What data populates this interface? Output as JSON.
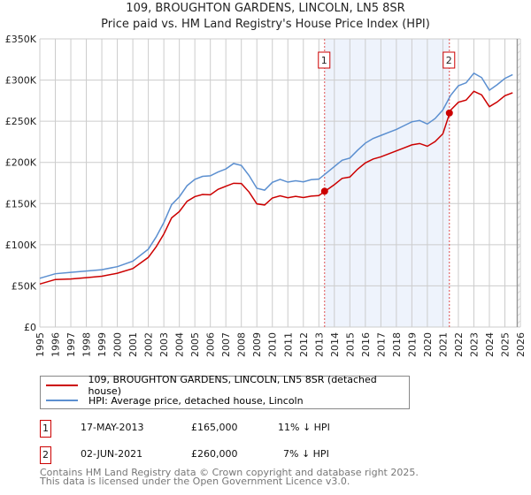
{
  "chart_data": {
    "type": "line",
    "title": "109, BROUGHTON GARDENS, LINCOLN, LN5 8SR",
    "subtitle": "Price paid vs. HM Land Registry's House Price Index (HPI)",
    "xlim": [
      1995,
      2026
    ],
    "ylim": [
      0,
      350000
    ],
    "y_ticks": [
      0,
      50000,
      100000,
      150000,
      200000,
      250000,
      300000,
      350000
    ],
    "y_tick_labels": [
      "£0",
      "£50K",
      "£100K",
      "£150K",
      "£200K",
      "£250K",
      "£300K",
      "£350K"
    ],
    "x_tick_labels": [
      "1995",
      "1996",
      "1997",
      "1998",
      "1999",
      "2000",
      "2001",
      "2002",
      "2003",
      "2004",
      "2005",
      "2006",
      "2007",
      "2008",
      "2009",
      "2010",
      "2011",
      "2012",
      "2013",
      "2014",
      "2015",
      "2016",
      "2017",
      "2018",
      "2019",
      "2020",
      "2021",
      "2022",
      "2023",
      "2024",
      "2025",
      "2026"
    ],
    "grid": true,
    "x": [
      1995,
      1996,
      1997,
      1998,
      1999,
      2000,
      2001,
      2002,
      2002.5,
      2003,
      2003.5,
      2004,
      2004.5,
      2005,
      2005.5,
      2006,
      2006.5,
      2007,
      2007.5,
      2008,
      2008.5,
      2009,
      2009.5,
      2010,
      2010.5,
      2011,
      2011.5,
      2012,
      2012.5,
      2013,
      2013.5,
      2014,
      2014.5,
      2015,
      2015.5,
      2016,
      2016.5,
      2017,
      2017.5,
      2018,
      2018.5,
      2019,
      2019.5,
      2020,
      2020.5,
      2021,
      2021.5,
      2022,
      2022.5,
      2023,
      2023.5,
      2024,
      2024.5,
      2025,
      2025.5
    ],
    "series": [
      {
        "name": "109, BROUGHTON GARDENS, LINCOLN, LN5 8SR (detached house)",
        "color": "#cc0000",
        "values": [
          54,
          56,
          57,
          59,
          61,
          65,
          71,
          85,
          98,
          114,
          134,
          142,
          151,
          157,
          160,
          160,
          167,
          171,
          175,
          175,
          165,
          151,
          150,
          155,
          158,
          156,
          158,
          157,
          159,
          160,
          167,
          174,
          182,
          184,
          190,
          198,
          203,
          206,
          210,
          214,
          218,
          222,
          224,
          221,
          227,
          233,
          262,
          272,
          275,
          286,
          282,
          268,
          274,
          282,
          286
        ]
      },
      {
        "name": "HPI: Average price, detached house, Lincoln",
        "color": "#5b8fd0",
        "values": [
          61,
          63,
          65,
          67,
          69,
          73,
          80,
          95,
          110,
          128,
          150,
          160,
          170,
          178,
          182,
          183,
          188,
          192,
          199,
          197,
          185,
          170,
          168,
          174,
          178,
          175,
          177,
          176,
          179,
          180,
          188,
          196,
          204,
          207,
          213,
          222,
          228,
          232,
          236,
          240,
          245,
          250,
          252,
          248,
          255,
          262,
          280,
          292,
          296,
          308,
          303,
          288,
          295,
          303,
          308
        ]
      }
    ],
    "value_unit": "thousands GBP",
    "sales": [
      {
        "id": "1",
        "x": 2013.37,
        "value": 165000,
        "date": "17-MAY-2013",
        "price": "£165,000",
        "hpi_diff": "11% ↓ HPI"
      },
      {
        "id": "2",
        "x": 2021.42,
        "value": 260000,
        "date": "02-JUN-2021",
        "price": "£260,000",
        "hpi_diff": "7% ↓ HPI"
      }
    ],
    "shaded_range": [
      2013.37,
      2021.42
    ],
    "forecast_start": 2025.8,
    "legend_placement": "below"
  },
  "footer": {
    "line1": "Contains HM Land Registry data © Crown copyright and database right 2025.",
    "line2": "This data is licensed under the Open Government Licence v3.0."
  }
}
